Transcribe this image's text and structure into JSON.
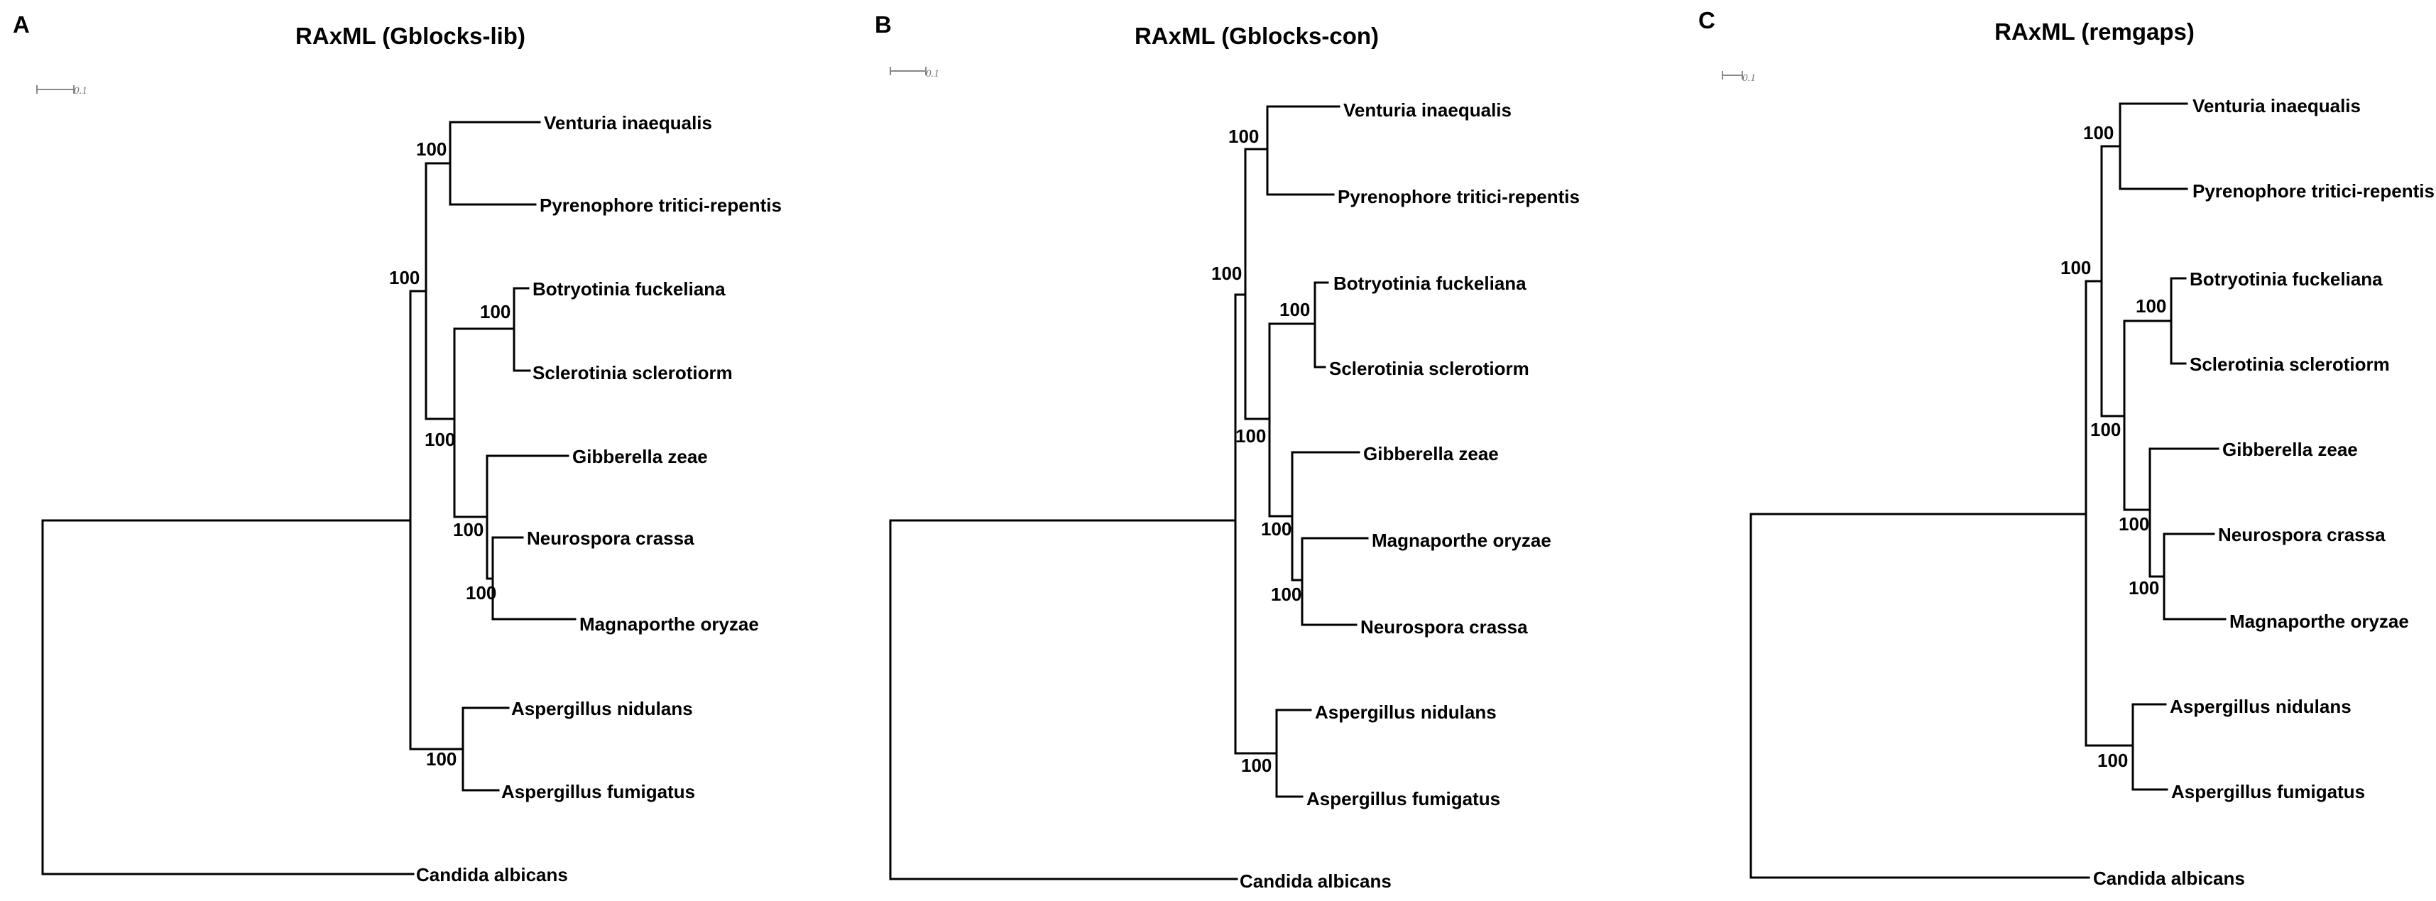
{
  "figure": {
    "panels": [
      {
        "letter": "A",
        "title": "RAxML (Gblocks-lib)",
        "scale_label": "0.1",
        "taxa": [
          "Venturia inaequalis",
          "Pyrenophore tritici-repentis",
          "Botryotinia fuckeliana",
          "Sclerotinia sclerotiorm",
          "Gibberella zeae",
          "Neurospora crassa",
          "Magnaporthe oryzae",
          "Aspergillus nidulans",
          "Aspergillus fumigatus",
          "Candida albicans"
        ],
        "supports": [
          "100",
          "100",
          "100",
          "100",
          "100",
          "100",
          "100"
        ]
      },
      {
        "letter": "B",
        "title": "RAxML (Gblocks-con)",
        "scale_label": "0.1",
        "taxa": [
          "Venturia inaequalis",
          "Pyrenophore tritici-repentis",
          "Botryotinia fuckeliana",
          "Sclerotinia sclerotiorm",
          "Gibberella zeae",
          "Magnaporthe oryzae",
          "Neurospora crassa",
          "Aspergillus nidulans",
          "Aspergillus fumigatus",
          "Candida albicans"
        ],
        "supports": [
          "100",
          "100",
          "100",
          "100",
          "100",
          "100",
          "100"
        ]
      },
      {
        "letter": "C",
        "title": "RAxML (remgaps)",
        "scale_label": "0.1",
        "taxa": [
          "Venturia inaequalis",
          "Pyrenophore tritici-repentis",
          "Botryotinia fuckeliana",
          "Sclerotinia sclerotiorm",
          "Gibberella zeae",
          "Neurospora crassa",
          "Magnaporthe oryzae",
          "Aspergillus nidulans",
          "Aspergillus fumigatus",
          "Candida albicans"
        ],
        "supports": [
          "100",
          "100",
          "100",
          "100",
          "100",
          "100",
          "100"
        ]
      }
    ]
  }
}
